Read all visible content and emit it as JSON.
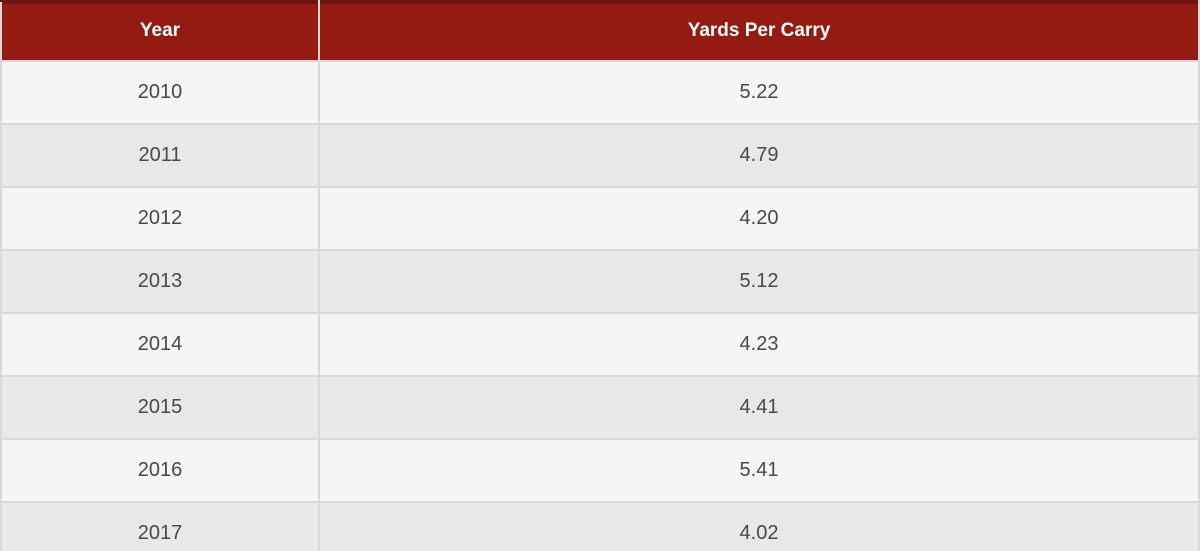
{
  "colors": {
    "header_bg": "#941b12",
    "header_accent": "#6f140e",
    "header_text": "#ffffff",
    "row_light": "#f5f5f5",
    "row_dark": "#e8e8e8",
    "border": "#d9d9d9",
    "cell_text": "#484848"
  },
  "table": {
    "columns": [
      {
        "label": "Year"
      },
      {
        "label": "Yards Per Carry"
      }
    ],
    "rows": [
      {
        "year": "2010",
        "ypc": "5.22"
      },
      {
        "year": "2011",
        "ypc": "4.79"
      },
      {
        "year": "2012",
        "ypc": "4.20"
      },
      {
        "year": "2013",
        "ypc": "5.12"
      },
      {
        "year": "2014",
        "ypc": "4.23"
      },
      {
        "year": "2015",
        "ypc": "4.41"
      },
      {
        "year": "2016",
        "ypc": "5.41"
      },
      {
        "year": "2017",
        "ypc": "4.02"
      }
    ]
  },
  "chart_data": {
    "type": "table",
    "title": "",
    "columns": [
      "Year",
      "Yards Per Carry"
    ],
    "categories": [
      "2010",
      "2011",
      "2012",
      "2013",
      "2014",
      "2015",
      "2016",
      "2017"
    ],
    "values": [
      5.22,
      4.79,
      4.2,
      5.12,
      4.23,
      4.41,
      5.41,
      4.02
    ]
  }
}
